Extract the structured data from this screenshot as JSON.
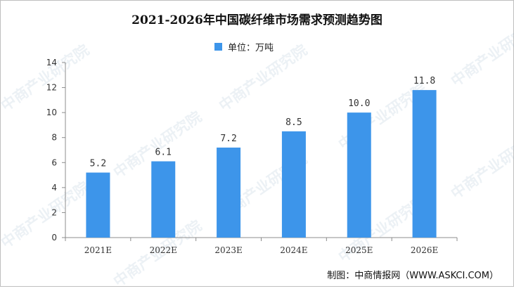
{
  "watermark": "中商产业研究院",
  "credit": "制图：中商情报网（WWW.ASKCI.COM）",
  "chart_data": {
    "type": "bar",
    "title": "2021-2026年中国碳纤维市场需求预测趋势图",
    "categories": [
      "2021E",
      "2022E",
      "2023E",
      "2024E",
      "2025E",
      "2026E"
    ],
    "series": [
      {
        "name": "单位：万吨",
        "values": [
          5.2,
          6.1,
          7.2,
          8.5,
          10.0,
          11.8
        ],
        "labels": [
          "5.2",
          "6.1",
          "7.2",
          "8.5",
          "10.0",
          "11.8"
        ]
      }
    ],
    "ylim": [
      0,
      14
    ],
    "yticks": [
      "0",
      "2",
      "4",
      "6",
      "8",
      "10",
      "12",
      "14"
    ],
    "xlabel": "",
    "ylabel": "",
    "legend_position": "top-center",
    "grid": false,
    "color": "#3d95ea"
  }
}
